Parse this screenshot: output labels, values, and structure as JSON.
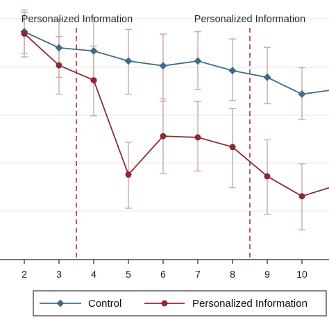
{
  "chart_data": {
    "type": "line",
    "x": [
      2,
      3,
      4,
      5,
      6,
      7,
      8,
      9,
      10,
      11
    ],
    "x_tick_labels": [
      "2",
      "3",
      "4",
      "5",
      "6",
      "7",
      "8",
      "9",
      "10"
    ],
    "ylim": [
      0,
      1
    ],
    "series": [
      {
        "name": "Control",
        "color": "#3f6b8a",
        "marker": "diamond",
        "values": [
          0.92,
          0.853,
          0.84,
          0.798,
          0.778,
          0.798,
          0.758,
          0.73,
          0.66,
          0.68
        ],
        "ci_low": [
          0.83,
          0.73,
          0.718,
          0.66,
          0.63,
          0.68,
          0.634,
          0.62,
          0.555,
          null
        ],
        "ci_high": [
          1.0,
          0.97,
          0.98,
          0.93,
          0.91,
          0.92,
          0.89,
          0.855,
          0.77,
          null
        ]
      },
      {
        "name": "Personalized Information",
        "color": "#8b2a33",
        "marker": "circle",
        "values": [
          0.912,
          0.78,
          0.718,
          0.325,
          0.485,
          0.48,
          0.44,
          0.318,
          0.235,
          0.28
        ],
        "ci_low": [
          0.815,
          0.66,
          0.57,
          0.185,
          0.33,
          0.34,
          0.27,
          0.16,
          0.095,
          null
        ],
        "ci_high": [
          1.01,
          0.9,
          0.86,
          0.46,
          0.64,
          0.63,
          0.6,
          0.47,
          0.37,
          null
        ]
      }
    ],
    "annotations": [
      {
        "text": "Personalized Information",
        "x_line": 3.5,
        "line_color": "#b3284d",
        "line_style": "dashed"
      },
      {
        "text": "Personalized Information",
        "x_line": 8.5,
        "line_color": "#b3284d",
        "line_style": "dashed"
      }
    ],
    "ci_color": "#c9a8a6",
    "grid": "horizontal",
    "legend_position": "bottom"
  }
}
